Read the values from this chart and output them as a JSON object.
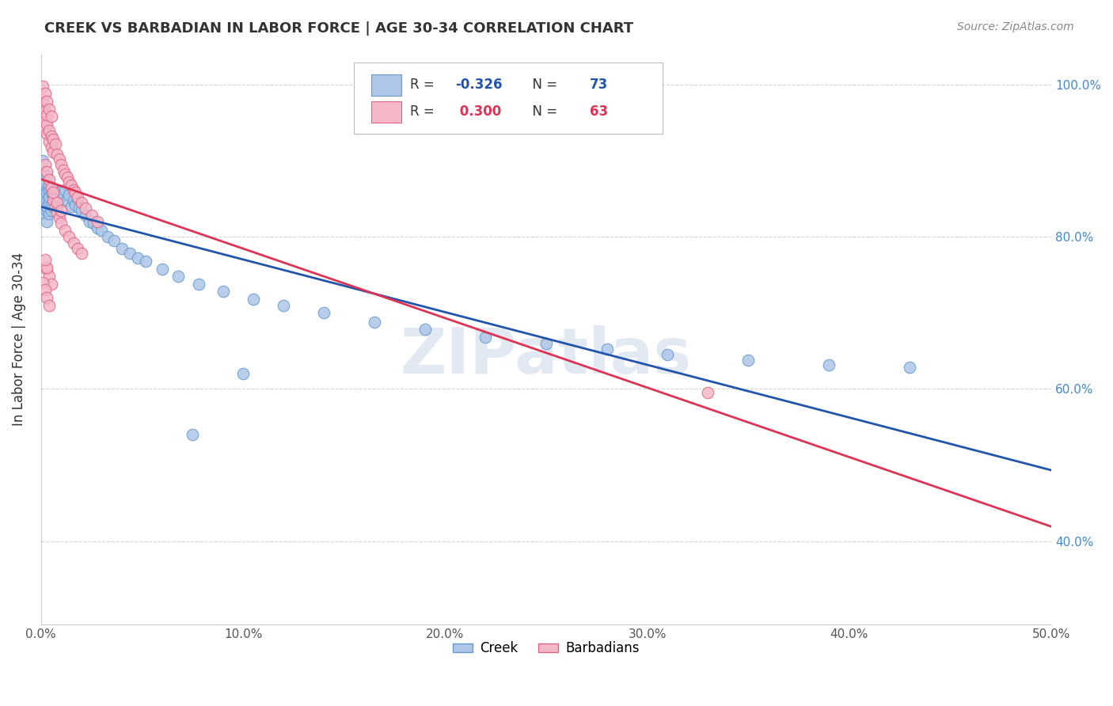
{
  "title": "CREEK VS BARBADIAN IN LABOR FORCE | AGE 30-34 CORRELATION CHART",
  "source_text": "Source: ZipAtlas.com",
  "ylabel": "In Labor Force | Age 30-34",
  "xlim": [
    0.0,
    0.5
  ],
  "ylim": [
    0.29,
    1.04
  ],
  "xticks": [
    0.0,
    0.1,
    0.2,
    0.3,
    0.4,
    0.5
  ],
  "yticks": [
    0.4,
    0.6,
    0.8,
    1.0
  ],
  "xticklabels": [
    "0.0%",
    "10.0%",
    "20.0%",
    "30.0%",
    "40.0%",
    "50.0%"
  ],
  "yticklabels": [
    "40.0%",
    "60.0%",
    "80.0%",
    "100.0%"
  ],
  "creek_color": "#aec6e8",
  "barbadian_color": "#f4b8c8",
  "creek_edge_color": "#6699cc",
  "barbadian_edge_color": "#dd6688",
  "creek_line_color": "#2255aa",
  "barbadian_line_color": "#dd3355",
  "creek_R": -0.326,
  "creek_N": 73,
  "barbadian_R": 0.3,
  "barbadian_N": 63,
  "watermark": "ZIPatlas",
  "background_color": "#ffffff",
  "grid_color": "#cccccc",
  "creek_x": [
    0.001,
    0.001,
    0.001,
    0.001,
    0.001,
    0.002,
    0.002,
    0.002,
    0.002,
    0.002,
    0.002,
    0.003,
    0.003,
    0.003,
    0.003,
    0.003,
    0.003,
    0.003,
    0.004,
    0.004,
    0.004,
    0.004,
    0.004,
    0.005,
    0.005,
    0.005,
    0.006,
    0.006,
    0.007,
    0.007,
    0.008,
    0.008,
    0.009,
    0.01,
    0.011,
    0.012,
    0.013,
    0.014,
    0.015,
    0.016,
    0.017,
    0.018,
    0.019,
    0.02,
    0.022,
    0.024,
    0.026,
    0.028,
    0.03,
    0.033,
    0.036,
    0.04,
    0.044,
    0.048,
    0.052,
    0.06,
    0.068,
    0.078,
    0.09,
    0.105,
    0.12,
    0.14,
    0.165,
    0.19,
    0.22,
    0.25,
    0.28,
    0.31,
    0.35,
    0.39,
    0.43,
    0.1,
    0.075
  ],
  "creek_y": [
    0.868,
    0.882,
    0.9,
    0.858,
    0.84,
    0.875,
    0.862,
    0.848,
    0.83,
    0.855,
    0.87,
    0.862,
    0.848,
    0.835,
    0.858,
    0.88,
    0.84,
    0.82,
    0.86,
    0.845,
    0.868,
    0.83,
    0.852,
    0.858,
    0.842,
    0.835,
    0.855,
    0.84,
    0.862,
    0.848,
    0.858,
    0.842,
    0.852,
    0.86,
    0.855,
    0.862,
    0.848,
    0.855,
    0.84,
    0.848,
    0.842,
    0.85,
    0.838,
    0.835,
    0.828,
    0.82,
    0.818,
    0.812,
    0.808,
    0.8,
    0.795,
    0.785,
    0.778,
    0.772,
    0.768,
    0.758,
    0.748,
    0.738,
    0.728,
    0.718,
    0.71,
    0.7,
    0.688,
    0.678,
    0.668,
    0.66,
    0.652,
    0.645,
    0.638,
    0.632,
    0.628,
    0.62,
    0.54
  ],
  "barbadian_x": [
    0.001,
    0.001,
    0.001,
    0.002,
    0.002,
    0.002,
    0.003,
    0.003,
    0.003,
    0.004,
    0.004,
    0.005,
    0.005,
    0.006,
    0.006,
    0.007,
    0.008,
    0.009,
    0.01,
    0.011,
    0.012,
    0.013,
    0.014,
    0.015,
    0.016,
    0.017,
    0.018,
    0.02,
    0.022,
    0.025,
    0.028,
    0.001,
    0.002,
    0.003,
    0.004,
    0.005,
    0.006,
    0.007,
    0.008,
    0.009,
    0.01,
    0.012,
    0.014,
    0.016,
    0.018,
    0.02,
    0.002,
    0.003,
    0.004,
    0.005,
    0.006,
    0.008,
    0.01,
    0.003,
    0.004,
    0.005,
    0.33,
    0.001,
    0.002,
    0.003,
    0.004,
    0.003,
    0.002
  ],
  "barbadian_y": [
    0.958,
    0.97,
    0.98,
    0.952,
    0.965,
    0.942,
    0.948,
    0.96,
    0.935,
    0.94,
    0.925,
    0.932,
    0.918,
    0.928,
    0.912,
    0.922,
    0.908,
    0.902,
    0.895,
    0.888,
    0.882,
    0.878,
    0.872,
    0.868,
    0.862,
    0.858,
    0.852,
    0.845,
    0.838,
    0.828,
    0.82,
    0.998,
    0.988,
    0.978,
    0.968,
    0.958,
    0.848,
    0.84,
    0.832,
    0.825,
    0.818,
    0.808,
    0.8,
    0.792,
    0.785,
    0.778,
    0.895,
    0.885,
    0.875,
    0.865,
    0.858,
    0.845,
    0.835,
    0.758,
    0.748,
    0.738,
    0.595,
    0.74,
    0.73,
    0.72,
    0.71,
    0.76,
    0.77
  ]
}
